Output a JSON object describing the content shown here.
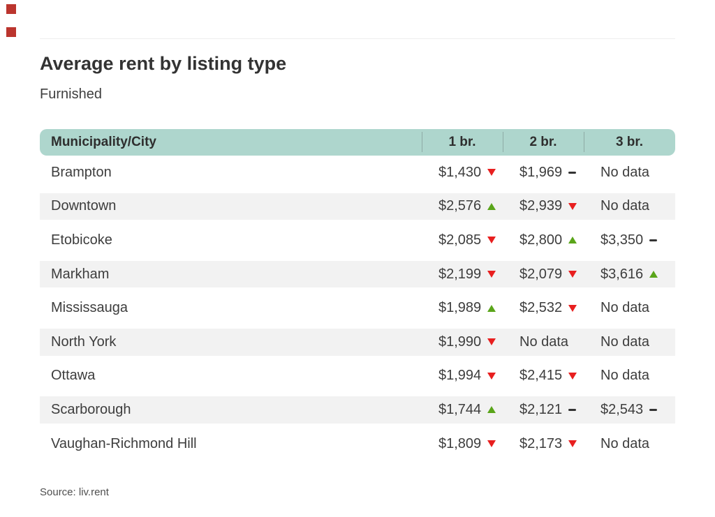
{
  "decor": {
    "marker_color": "#bb352e",
    "marker_count": 2
  },
  "colors": {
    "header_bg": "#aed6cd",
    "row_stripe": "#f2f2f2",
    "trend_up": "#5aa51a",
    "trend_down": "#e81f1f",
    "trend_flat": "#333333",
    "title_text": "#333333"
  },
  "source": "Source: liv.rent",
  "chart_data": {
    "type": "table",
    "title": "Average rent by listing type",
    "subtitle": "Furnished",
    "columns": [
      "Municipality/City",
      "1 br.",
      "2 br.",
      "3 br."
    ],
    "rows": [
      {
        "city": "Brampton",
        "values": [
          {
            "text": "$1,430",
            "trend": "down"
          },
          {
            "text": "$1,969",
            "trend": "flat"
          },
          {
            "text": "No data",
            "trend": null
          }
        ]
      },
      {
        "city": "Downtown",
        "values": [
          {
            "text": "$2,576",
            "trend": "up"
          },
          {
            "text": "$2,939",
            "trend": "down"
          },
          {
            "text": "No data",
            "trend": null
          }
        ]
      },
      {
        "city": "Etobicoke",
        "values": [
          {
            "text": "$2,085",
            "trend": "down"
          },
          {
            "text": "$2,800",
            "trend": "up"
          },
          {
            "text": "$3,350",
            "trend": "flat"
          }
        ]
      },
      {
        "city": "Markham",
        "values": [
          {
            "text": "$2,199",
            "trend": "down"
          },
          {
            "text": "$2,079",
            "trend": "down"
          },
          {
            "text": "$3,616",
            "trend": "up"
          }
        ]
      },
      {
        "city": "Mississauga",
        "values": [
          {
            "text": "$1,989",
            "trend": "up"
          },
          {
            "text": "$2,532",
            "trend": "down"
          },
          {
            "text": "No data",
            "trend": null
          }
        ]
      },
      {
        "city": "North York",
        "values": [
          {
            "text": "$1,990",
            "trend": "down"
          },
          {
            "text": "No data",
            "trend": null
          },
          {
            "text": "No data",
            "trend": null
          }
        ]
      },
      {
        "city": "Ottawa",
        "values": [
          {
            "text": "$1,994",
            "trend": "down"
          },
          {
            "text": "$2,415",
            "trend": "down"
          },
          {
            "text": "No data",
            "trend": null
          }
        ]
      },
      {
        "city": "Scarborough",
        "values": [
          {
            "text": "$1,744",
            "trend": "up"
          },
          {
            "text": "$2,121",
            "trend": "flat"
          },
          {
            "text": "$2,543",
            "trend": "flat"
          }
        ]
      },
      {
        "city": "Vaughan-Richmond Hill",
        "values": [
          {
            "text": "$1,809",
            "trend": "down"
          },
          {
            "text": "$2,173",
            "trend": "down"
          },
          {
            "text": "No data",
            "trend": null
          }
        ]
      }
    ]
  }
}
